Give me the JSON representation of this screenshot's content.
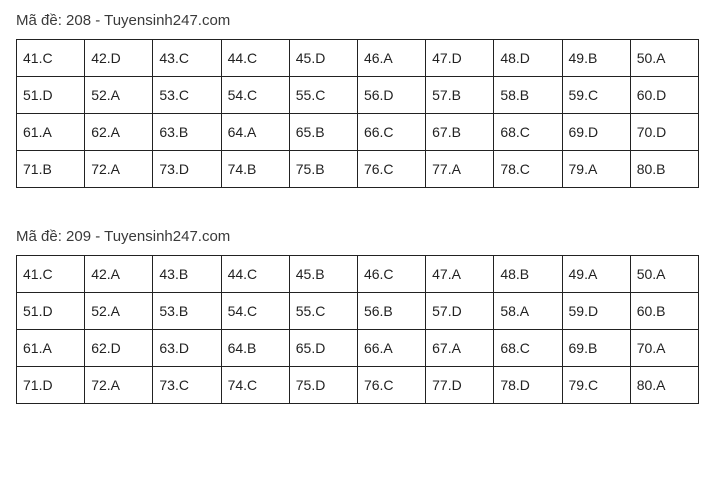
{
  "blocks": [
    {
      "title": "Mã đề: 208 - Tuyensinh247.com",
      "rows": [
        [
          "41.C",
          "42.D",
          "43.C",
          "44.C",
          "45.D",
          "46.A",
          "47.D",
          "48.D",
          "49.B",
          "50.A"
        ],
        [
          "51.D",
          "52.A",
          "53.C",
          "54.C",
          "55.C",
          "56.D",
          "57.B",
          "58.B",
          "59.C",
          "60.D"
        ],
        [
          "61.A",
          "62.A",
          "63.B",
          "64.A",
          "65.B",
          "66.C",
          "67.B",
          "68.C",
          "69.D",
          "70.D"
        ],
        [
          "71.B",
          "72.A",
          "73.D",
          "74.B",
          "75.B",
          "76.C",
          "77.A",
          "78.C",
          "79.A",
          "80.B"
        ]
      ]
    },
    {
      "title": "Mã đề: 209 - Tuyensinh247.com",
      "rows": [
        [
          "41.C",
          "42.A",
          "43.B",
          "44.C",
          "45.B",
          "46.C",
          "47.A",
          "48.B",
          "49.A",
          "50.A"
        ],
        [
          "51.D",
          "52.A",
          "53.B",
          "54.C",
          "55.C",
          "56.B",
          "57.D",
          "58.A",
          "59.D",
          "60.B"
        ],
        [
          "61.A",
          "62.D",
          "63.D",
          "64.B",
          "65.D",
          "66.A",
          "67.A",
          "68.C",
          "69.B",
          "70.A"
        ],
        [
          "71.D",
          "72.A",
          "73.C",
          "74.C",
          "75.D",
          "76.C",
          "77.D",
          "78.D",
          "79.C",
          "80.A"
        ]
      ]
    }
  ],
  "style": {
    "type": "table",
    "columns_per_row": 10,
    "rows_per_block": 4,
    "background_color": "#ffffff",
    "border_color": "#222222",
    "text_color": "#222222",
    "title_color": "#3a3a3a",
    "title_fontsize": 15,
    "cell_fontsize": 14,
    "cell_padding": "10px 6px",
    "block_spacing": 40
  }
}
